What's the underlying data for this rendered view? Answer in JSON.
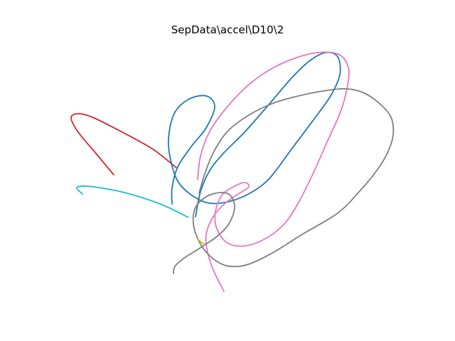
{
  "chart_data": {
    "type": "line",
    "title": "SepData\\accel\\D10\\2",
    "xlabel": "",
    "ylabel": "",
    "axes_visible": false,
    "grid": false,
    "legend": "none",
    "series": [
      {
        "color": "#d62728",
        "points": [
          [
            160,
            246
          ],
          [
            135,
            216
          ],
          [
            110,
            186
          ],
          [
            100,
            166
          ],
          [
            110,
            160
          ],
          [
            130,
            165
          ],
          [
            170,
            185
          ],
          [
            215,
            210
          ],
          [
            248,
            236
          ]
        ]
      },
      {
        "color": "#17becf",
        "points": [
          [
            116,
            273
          ],
          [
            108,
            265
          ],
          [
            114,
            262
          ],
          [
            132,
            263
          ],
          [
            175,
            271
          ],
          [
            225,
            287
          ],
          [
            265,
            306
          ]
        ]
      },
      {
        "color": "#1f77b4",
        "points": [
          [
            242,
            287
          ],
          [
            242,
            265
          ],
          [
            250,
            235
          ],
          [
            270,
            205
          ],
          [
            290,
            180
          ],
          [
            302,
            150
          ],
          [
            290,
            135
          ],
          [
            265,
            140
          ],
          [
            245,
            160
          ],
          [
            237,
            195
          ],
          [
            240,
            225
          ],
          [
            250,
            255
          ],
          [
            270,
            275
          ],
          [
            295,
            286
          ],
          [
            325,
            283
          ],
          [
            355,
            270
          ],
          [
            380,
            250
          ],
          [
            410,
            210
          ],
          [
            440,
            170
          ],
          [
            465,
            135
          ],
          [
            478,
            105
          ],
          [
            475,
            80
          ],
          [
            458,
            74
          ],
          [
            435,
            86
          ],
          [
            410,
            110
          ],
          [
            380,
            145
          ],
          [
            345,
            185
          ],
          [
            315,
            215
          ],
          [
            295,
            240
          ],
          [
            282,
            270
          ],
          [
            275,
            305
          ]
        ]
      },
      {
        "color": "#e377c2",
        "points": [
          [
            278,
            253
          ],
          [
            282,
            220
          ],
          [
            295,
            185
          ],
          [
            320,
            150
          ],
          [
            355,
            115
          ],
          [
            395,
            90
          ],
          [
            440,
            75
          ],
          [
            475,
            76
          ],
          [
            490,
            95
          ],
          [
            488,
            125
          ],
          [
            478,
            160
          ],
          [
            460,
            200
          ],
          [
            440,
            245
          ],
          [
            420,
            285
          ],
          [
            400,
            315
          ],
          [
            375,
            335
          ],
          [
            345,
            346
          ],
          [
            320,
            342
          ],
          [
            305,
            322
          ],
          [
            303,
            298
          ],
          [
            312,
            275
          ],
          [
            330,
            262
          ],
          [
            345,
            257
          ],
          [
            350,
            263
          ],
          [
            340,
            270
          ],
          [
            318,
            285
          ],
          [
            300,
            305
          ],
          [
            290,
            330
          ],
          [
            292,
            355
          ],
          [
            300,
            380
          ],
          [
            315,
            410
          ]
        ]
      },
      {
        "color": "#7f7f7f",
        "points": [
          [
            244,
            385
          ],
          [
            246,
            375
          ],
          [
            258,
            364
          ],
          [
            280,
            350
          ],
          [
            305,
            333
          ],
          [
            322,
            315
          ],
          [
            330,
            292
          ],
          [
            324,
            275
          ],
          [
            310,
            271
          ],
          [
            290,
            277
          ],
          [
            275,
            292
          ],
          [
            272,
            315
          ],
          [
            280,
            340
          ],
          [
            295,
            360
          ],
          [
            315,
            373
          ],
          [
            335,
            375
          ],
          [
            355,
            370
          ],
          [
            385,
            355
          ],
          [
            425,
            330
          ],
          [
            475,
            300
          ],
          [
            505,
            270
          ],
          [
            530,
            240
          ],
          [
            545,
            215
          ],
          [
            553,
            190
          ],
          [
            550,
            165
          ],
          [
            533,
            145
          ],
          [
            510,
            130
          ],
          [
            485,
            125
          ],
          [
            455,
            128
          ],
          [
            420,
            135
          ],
          [
            385,
            145
          ],
          [
            350,
            162
          ],
          [
            320,
            185
          ],
          [
            300,
            215
          ],
          [
            288,
            245
          ],
          [
            280,
            272
          ]
        ]
      },
      {
        "color": "#bcbd22",
        "points": [
          [
            278,
            337
          ],
          [
            282,
            340
          ],
          [
            286,
            343
          ],
          [
            289,
            345
          ]
        ]
      }
    ]
  }
}
